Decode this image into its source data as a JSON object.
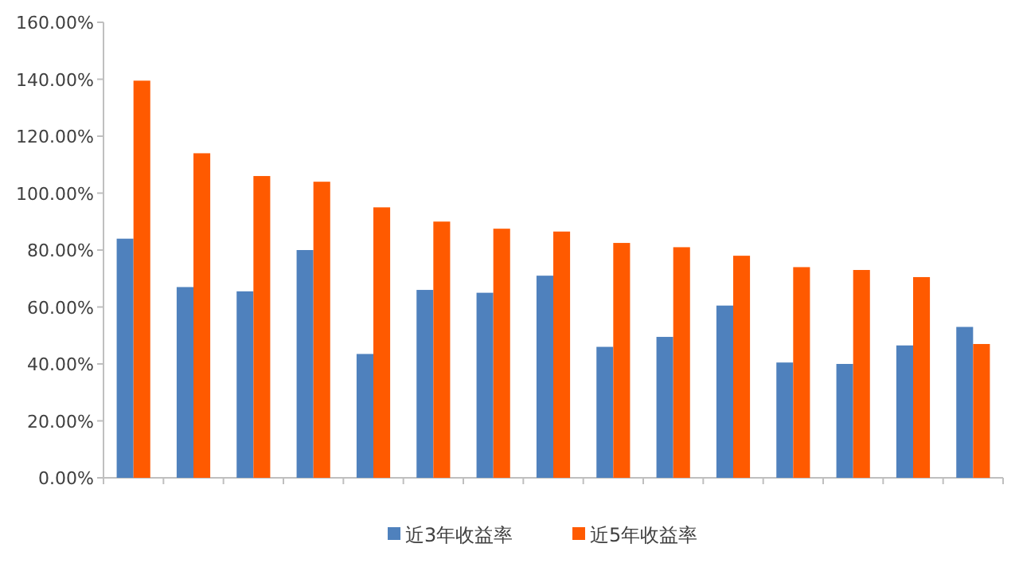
{
  "chart_data": {
    "type": "bar",
    "categories": [
      null,
      null,
      null,
      null,
      null,
      null,
      null,
      null,
      null,
      null,
      null,
      null,
      null,
      null,
      null
    ],
    "series": [
      {
        "name": "近3年收益率",
        "color": "#4f81bd",
        "values": [
          84,
          67,
          65.5,
          80,
          43.5,
          66,
          65,
          71,
          46,
          49.5,
          60.5,
          40.5,
          40,
          46.5,
          53
        ]
      },
      {
        "name": "近5年收益率",
        "color": "#ff5a00",
        "values": [
          139.5,
          114,
          106,
          104,
          95,
          90,
          87.5,
          86.5,
          82.5,
          81,
          78,
          74,
          73,
          70.5,
          47
        ]
      }
    ],
    "ylim": [
      0,
      160
    ],
    "yticks": [
      {
        "value": 0,
        "label": "0.00%"
      },
      {
        "value": 20,
        "label": "20.00%"
      },
      {
        "value": 40,
        "label": "40.00%"
      },
      {
        "value": 60,
        "label": "60.00%"
      },
      {
        "value": 80,
        "label": "80.00%"
      },
      {
        "value": 100,
        "label": "100.00%"
      },
      {
        "value": 120,
        "label": "120.00%"
      },
      {
        "value": 140,
        "label": "140.00%"
      },
      {
        "value": 160,
        "label": "160.00%"
      }
    ],
    "grid": false,
    "legend": "bottom"
  }
}
